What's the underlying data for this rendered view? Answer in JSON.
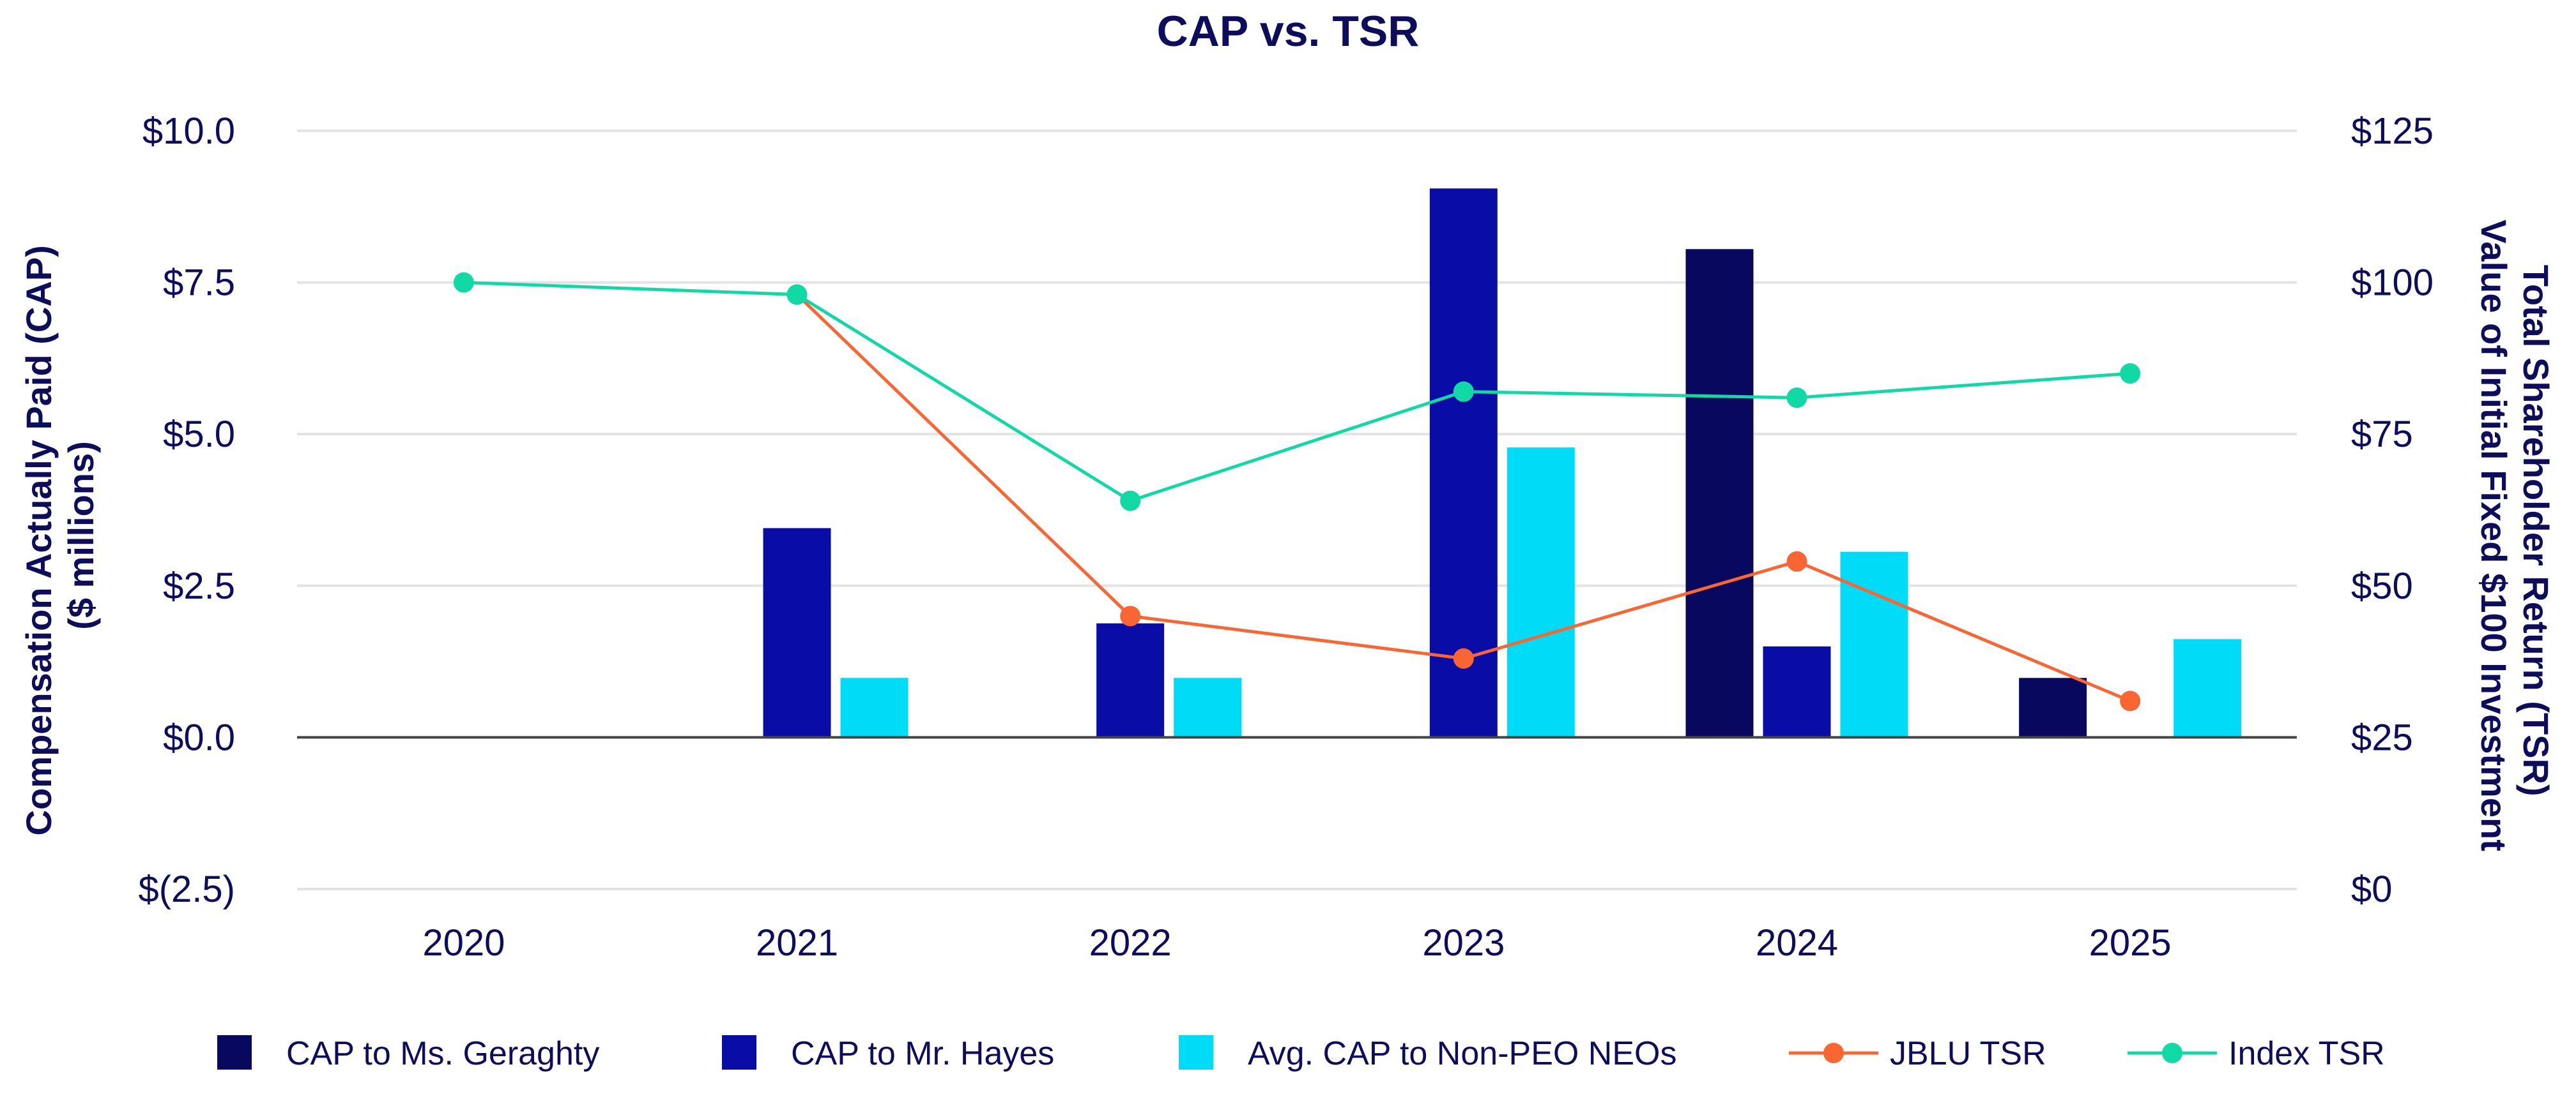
{
  "chart_data": {
    "type": "bar",
    "title": "CAP vs. TSR",
    "xlabel": "",
    "ylabel": [
      "Compensation Actually Paid (CAP)",
      "($ millions)"
    ],
    "ylabel_right": [
      "Total Shareholder Return (TSR)",
      "Value of Initial Fixed $100 Investment"
    ],
    "categories": [
      "2020",
      "2021",
      "2022",
      "2023",
      "2024",
      "2025"
    ],
    "ylim": [
      -2.5,
      10.0
    ],
    "ylim_right": [
      0,
      125
    ],
    "yticks": [
      10.0,
      7.5,
      5.0,
      2.5,
      0.0,
      -2.5
    ],
    "yticklabels": [
      "$10.0",
      "$7.5",
      "$5.0",
      "$2.5",
      "$0.0",
      "$(2.5)"
    ],
    "yticks_right": [
      125,
      100,
      75,
      50,
      25,
      0
    ],
    "yticklabels_right": [
      "$125",
      "$100",
      "$75",
      "$50",
      "$25",
      "$0"
    ],
    "grid": true,
    "legend_position": "bottom",
    "series": [
      {
        "name": "CAP to Ms. Geraghty",
        "type": "bar",
        "axis": "left",
        "color": "#08085e",
        "values": [
          null,
          null,
          null,
          null,
          8.05,
          0.98
        ]
      },
      {
        "name": "CAP to Mr. Hayes",
        "type": "bar",
        "axis": "left",
        "color": "#0a0ca6",
        "values": [
          null,
          3.45,
          1.88,
          9.05,
          1.5,
          null
        ]
      },
      {
        "name": "Avg. CAP to Non-PEO NEOs",
        "type": "bar",
        "axis": "left",
        "color": "#00dcf7",
        "values": [
          null,
          0.98,
          0.98,
          4.78,
          3.06,
          1.62
        ]
      },
      {
        "name": "JBLU TSR",
        "type": "line",
        "axis": "right",
        "color": "#f96633",
        "values": [
          null,
          98,
          45,
          38,
          54,
          31
        ]
      },
      {
        "name": "Index TSR",
        "type": "line",
        "axis": "right",
        "color": "#11d9a5",
        "values": [
          100,
          98,
          64,
          82,
          81,
          85
        ]
      }
    ]
  }
}
